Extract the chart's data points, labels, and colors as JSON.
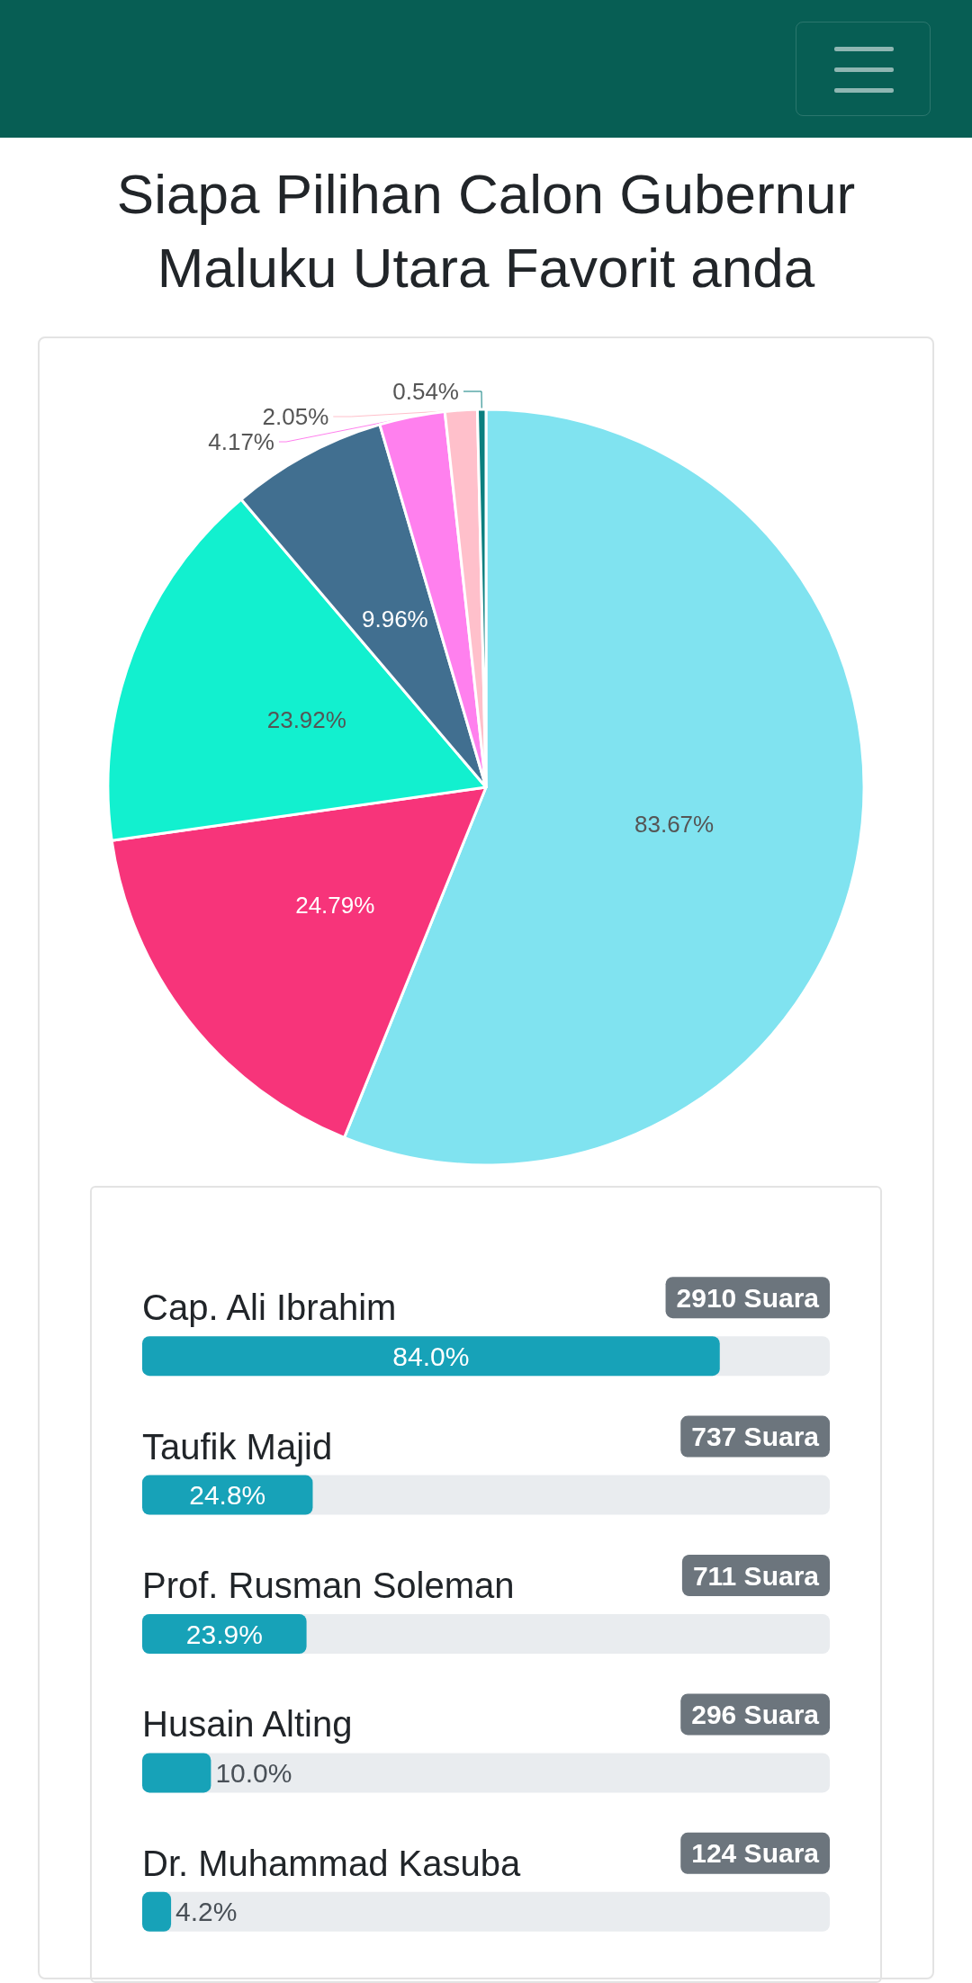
{
  "chart_data": [
    {
      "type": "pie",
      "title": "Siapa Pilihan Calon Gubernur Maluku Utara Favorit anda",
      "categories": [
        null,
        null,
        null,
        null,
        null,
        null,
        null
      ],
      "values": [
        83.67,
        24.79,
        23.92,
        9.96,
        4.17,
        2.05,
        0.54
      ],
      "colors": [
        "#80e3f0",
        "#f7347a",
        "#12f0cf",
        "#416f90",
        "#ff80ee",
        "#ffc0cb",
        "#0a7f7f"
      ],
      "value_labels": [
        "83.67%",
        "24.79%",
        "23.92%",
        "9.96%",
        "4.17%",
        "2.05%",
        "0.54%"
      ]
    },
    {
      "type": "bar",
      "orientation": "horizontal",
      "categories": [
        "Cap. Ali Ibrahim",
        "Taufik Majid",
        "Prof. Rusman Soleman",
        "Husain Alting",
        "Dr. Muhammad Kasuba"
      ],
      "values": [
        84.0,
        24.8,
        23.9,
        10.0,
        4.2
      ],
      "color": "#17a2b8",
      "xlim": [
        0,
        100
      ],
      "tick_labels": "y",
      "value_labels": [
        "84.0%",
        "24.8%",
        "23.9%",
        "10.0%",
        "4.2%"
      ],
      "annotations": [
        "2910 Suara",
        "737 Suara",
        "711 Suara",
        "296 Suara",
        "124 Suara"
      ]
    }
  ]
}
